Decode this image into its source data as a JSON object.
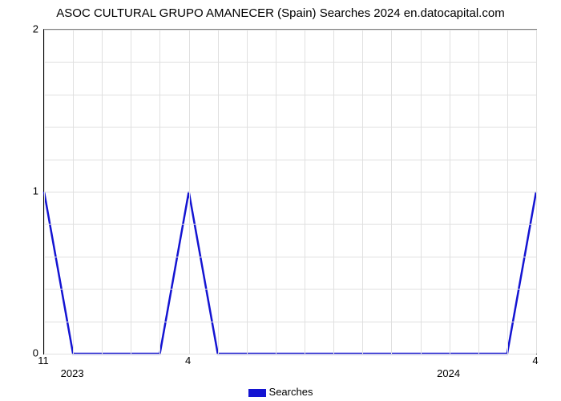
{
  "chart": {
    "type": "line",
    "title": "ASOC CULTURAL GRUPO AMANECER (Spain) Searches 2024 en.datocapital.com",
    "title_fontsize": 15,
    "background_color": "#ffffff",
    "grid_color": "#e0e0e0",
    "axis_color": "#000000",
    "axis_secondary_color": "#808080",
    "ylim": [
      0,
      2
    ],
    "ytick_step": 1,
    "ytick_labels": [
      "0",
      "1",
      "2"
    ],
    "minor_y_count": 4,
    "x_count": 18,
    "x_tick_labels_bottom": {
      "0": "11",
      "5": "4",
      "17": "4"
    },
    "x_tick_labels_top": {
      "1": "2023",
      "14": "2024"
    },
    "series": {
      "label": "Searches",
      "color": "#1414d2",
      "line_width": 2.5,
      "values": [
        1,
        0,
        0,
        0,
        0,
        1,
        0,
        0,
        0,
        0,
        0,
        0,
        0,
        0,
        0,
        0,
        0,
        1
      ]
    },
    "legend": {
      "swatch_color": "#1414d2"
    }
  }
}
